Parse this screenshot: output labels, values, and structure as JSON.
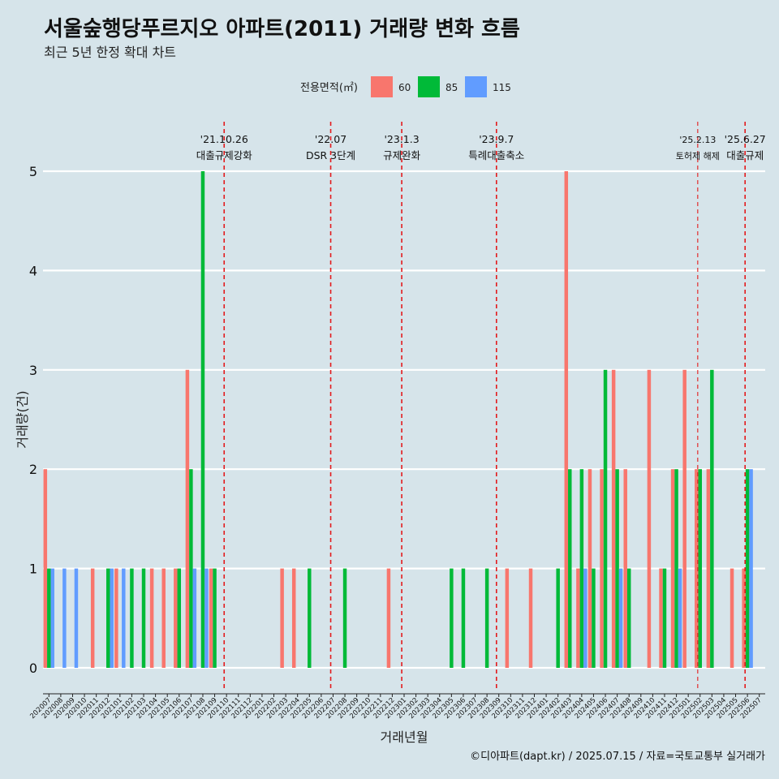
{
  "chart_data": {
    "type": "bar",
    "title": "서울숲행당푸르지오 아파트(2011) 거래량 변화 흐름",
    "subtitle": "최근 5년 한정 확대 차트",
    "xlabel": "거래년월",
    "ylabel": "거래량(건)",
    "caption": "©디아파트(dapt.kr) / 2025.07.15 / 자료=국토교통부 실거래가",
    "legend": {
      "title": "전용면적(㎡)",
      "position": "top",
      "entries": [
        {
          "label": "60",
          "color": "#f8766d"
        },
        {
          "label": "85",
          "color": "#00ba38"
        },
        {
          "label": "115",
          "color": "#619cff"
        }
      ]
    },
    "ylim": [
      0,
      5
    ],
    "yticks": [
      0,
      1,
      2,
      3,
      4,
      5
    ],
    "categories": [
      "202007",
      "202008",
      "202009",
      "202010",
      "202011",
      "202012",
      "202101",
      "202102",
      "202103",
      "202104",
      "202105",
      "202106",
      "202107",
      "202108",
      "202109",
      "202110",
      "202111",
      "202112",
      "202201",
      "202202",
      "202203",
      "202204",
      "202205",
      "202206",
      "202207",
      "202208",
      "202209",
      "202210",
      "202211",
      "202212",
      "202301",
      "202302",
      "202303",
      "202304",
      "202305",
      "202306",
      "202307",
      "202308",
      "202309",
      "202310",
      "202311",
      "202312",
      "202401",
      "202402",
      "202403",
      "202404",
      "202405",
      "202406",
      "202407",
      "202408",
      "202409",
      "202410",
      "202411",
      "202412",
      "202501",
      "202502",
      "202503",
      "202504",
      "202505",
      "202506",
      "202507"
    ],
    "series": [
      {
        "name": "60",
        "color": "#f8766d",
        "values": [
          2,
          0,
          0,
          0,
          1,
          0,
          1,
          0,
          0,
          1,
          1,
          1,
          3,
          0,
          1,
          0,
          0,
          0,
          0,
          0,
          1,
          1,
          0,
          0,
          0,
          0,
          0,
          0,
          0,
          1,
          0,
          0,
          0,
          0,
          0,
          0,
          0,
          0,
          0,
          1,
          0,
          1,
          0,
          0,
          5,
          1,
          2,
          2,
          3,
          2,
          0,
          3,
          1,
          2,
          3,
          2,
          2,
          0,
          1,
          1,
          0
        ]
      },
      {
        "name": "85",
        "color": "#00ba38",
        "values": [
          1,
          0,
          0,
          0,
          0,
          1,
          0,
          1,
          1,
          0,
          0,
          1,
          2,
          5,
          1,
          0,
          0,
          0,
          0,
          0,
          0,
          0,
          1,
          0,
          0,
          1,
          0,
          0,
          0,
          0,
          0,
          0,
          0,
          0,
          1,
          1,
          0,
          1,
          0,
          0,
          0,
          0,
          0,
          1,
          2,
          2,
          1,
          3,
          2,
          1,
          0,
          0,
          1,
          2,
          0,
          2,
          3,
          0,
          0,
          2,
          0
        ]
      },
      {
        "name": "115",
        "color": "#619cff",
        "values": [
          1,
          1,
          1,
          0,
          0,
          1,
          1,
          0,
          0,
          0,
          0,
          0,
          1,
          1,
          0,
          0,
          0,
          0,
          0,
          0,
          0,
          0,
          0,
          0,
          0,
          0,
          0,
          0,
          0,
          0,
          0,
          0,
          0,
          0,
          0,
          0,
          0,
          0,
          0,
          0,
          0,
          0,
          0,
          0,
          0,
          1,
          0,
          0,
          1,
          0,
          0,
          0,
          0,
          1,
          0,
          0,
          0,
          0,
          0,
          2,
          0
        ]
      }
    ],
    "events": [
      {
        "x": "202110",
        "date": "'21.10.26",
        "label": "대출규제강화"
      },
      {
        "x": "202207",
        "date": "'22.07",
        "label": "DSR 3단계"
      },
      {
        "x": "202301",
        "date": "'23.1.3",
        "label": "규제완화"
      },
      {
        "x": "202309",
        "date": "'23.9.7",
        "label": "특례대출축소"
      },
      {
        "x": "202502",
        "date": "'25.2.13",
        "label": "토허제 해제"
      },
      {
        "x": "202506",
        "date": "'25.6.27",
        "label": "대출규제"
      }
    ],
    "grid": true,
    "event_line_color": "#e31a1c"
  }
}
